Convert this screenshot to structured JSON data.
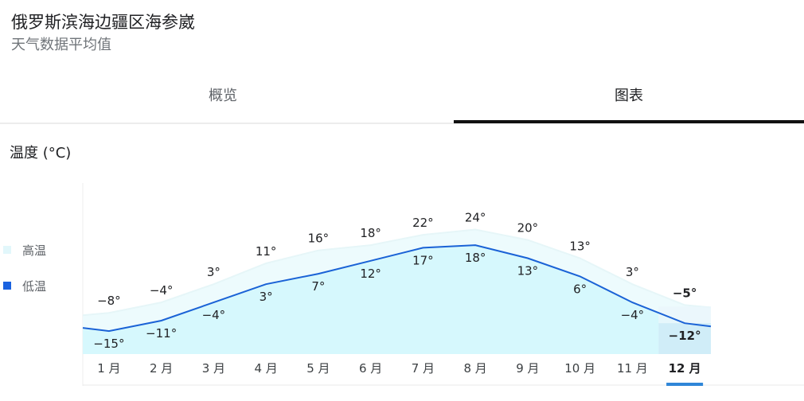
{
  "header": {
    "title": "俄罗斯滨海边疆区海参崴",
    "subtitle": "天气数据平均值"
  },
  "tabs": [
    {
      "label": "概览",
      "selected": false
    },
    {
      "label": "图表",
      "selected": true
    }
  ],
  "section": {
    "label": "温度 (°C)"
  },
  "legend": [
    {
      "label": "高温",
      "color": "#e2f7fb"
    },
    {
      "label": "低温",
      "color": "#1a62e0"
    }
  ],
  "colors": {
    "low_line": "#1a62d6",
    "low_fill": "#d6f8fd",
    "high_fill": "#edfbfd",
    "selected_col": "#cdebf7",
    "selected_indicator": "#2f86d8"
  },
  "chart_data": {
    "type": "area",
    "title": "温度 (°C)",
    "xlabel": "",
    "ylabel": "温度 (°C)",
    "categories": [
      "1 月",
      "2 月",
      "3 月",
      "4 月",
      "5 月",
      "6 月",
      "7 月",
      "8 月",
      "9 月",
      "10 月",
      "11 月",
      "12 月"
    ],
    "series": [
      {
        "name": "高温",
        "values": [
          -8,
          -4,
          3,
          11,
          16,
          18,
          22,
          24,
          20,
          13,
          3,
          -5
        ]
      },
      {
        "name": "低温",
        "values": [
          -15,
          -11,
          -4,
          3,
          7,
          12,
          17,
          18,
          13,
          6,
          -4,
          -12
        ]
      }
    ],
    "value_suffix": "°",
    "selected_index": 11,
    "legend_position": "left",
    "grid": false
  }
}
